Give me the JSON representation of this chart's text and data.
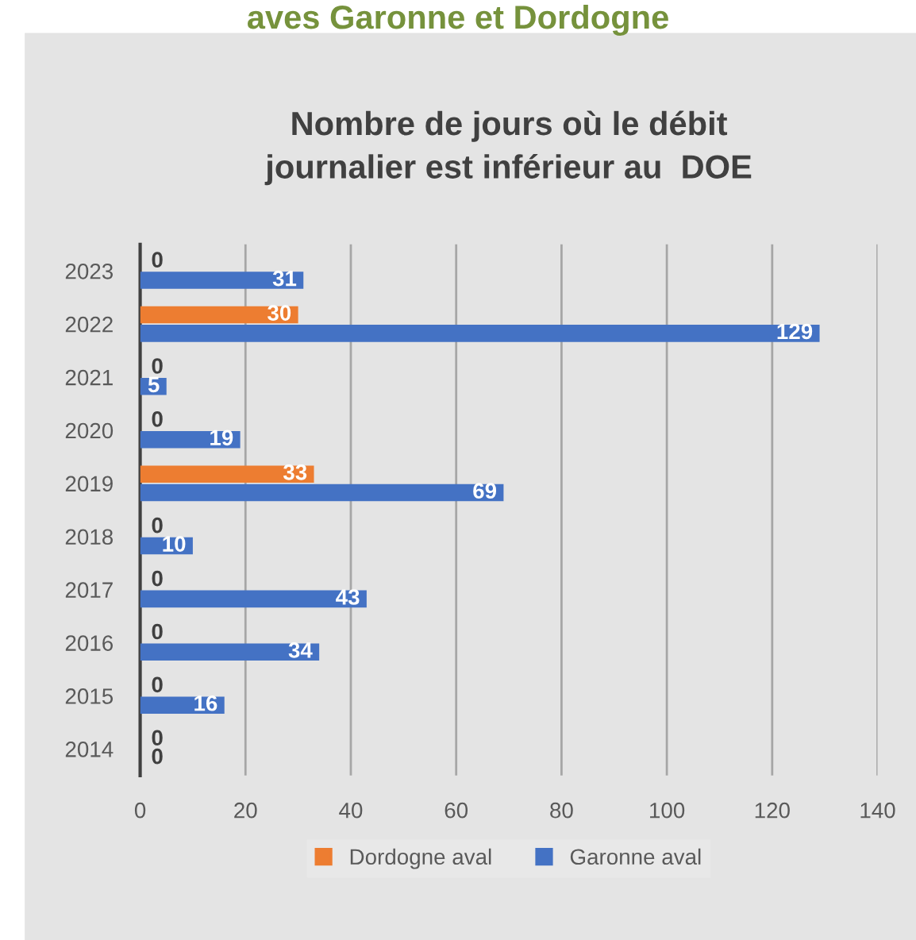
{
  "chart_data": {
    "type": "bar",
    "orientation": "horizontal",
    "title": "Nombre de jours où le débit\njournalier est inférieur au  DOE",
    "annotations": [
      "aves Garonne et Dordogne"
    ],
    "categories": [
      "2023",
      "2022",
      "2021",
      "2020",
      "2019",
      "2018",
      "2017",
      "2016",
      "2015",
      "2014"
    ],
    "series": [
      {
        "name": "Dordogne aval",
        "color": "#ed7d31",
        "values": [
          0,
          30,
          0,
          0,
          33,
          0,
          0,
          0,
          0,
          0
        ]
      },
      {
        "name": "Garonne aval",
        "color": "#4472c4",
        "values": [
          31,
          129,
          5,
          19,
          69,
          10,
          43,
          34,
          16,
          0
        ]
      }
    ],
    "xlim": [
      0,
      140
    ],
    "xticks": [
      0,
      20,
      40,
      60,
      80,
      100,
      120,
      140
    ],
    "grid": "x",
    "legend": "bottom",
    "data_labels": true
  }
}
